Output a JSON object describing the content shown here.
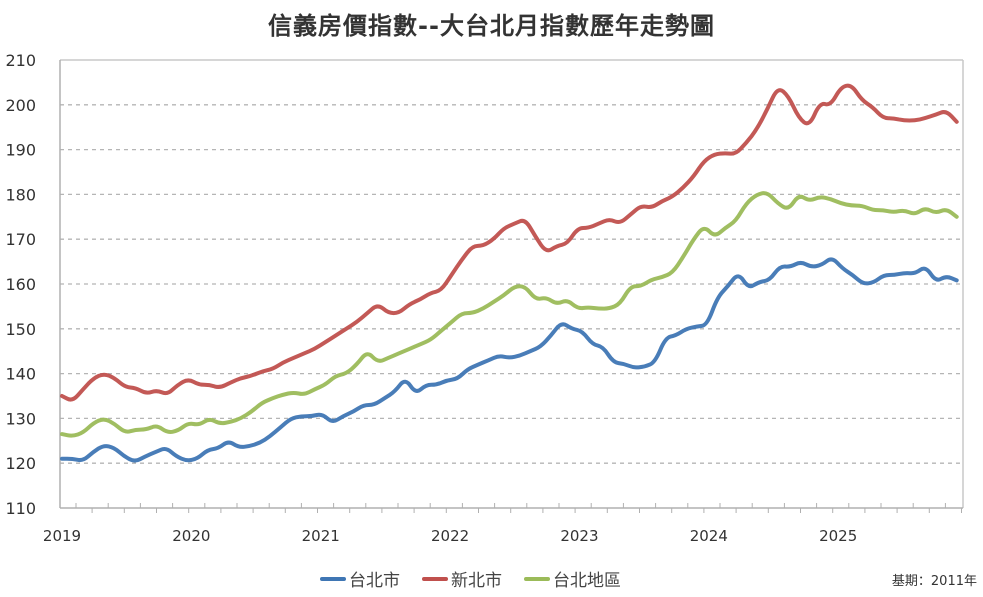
{
  "chart_data": {
    "type": "line",
    "title": "信義房價指數--大台北月指數歷年走勢圖",
    "xlabel": "",
    "ylabel": "",
    "ylim": [
      110,
      210
    ],
    "yticks": [
      110,
      120,
      130,
      140,
      150,
      160,
      170,
      180,
      190,
      200,
      210
    ],
    "xtick_labels": [
      "2019",
      "2020",
      "2021",
      "2022",
      "2023",
      "2024",
      "2025"
    ],
    "x_start": "2019-01",
    "x_end": "2025-12",
    "grid": "horizontal-dashed",
    "legend_position": "bottom",
    "note": "基期：2011年",
    "series": [
      {
        "name": "台北市",
        "color": "#3f76b4",
        "values": [
          121,
          121,
          120.5,
          122.5,
          124,
          123.5,
          121.5,
          120.3,
          121.5,
          122.5,
          123.5,
          121.5,
          120.5,
          121,
          123,
          123.3,
          125,
          123.5,
          123.8,
          124.5,
          126,
          128,
          130,
          130.5,
          130.5,
          131,
          129,
          130.5,
          131.5,
          133,
          133,
          134.5,
          136,
          139,
          135.5,
          137.5,
          137.5,
          138.5,
          138.8,
          141,
          142,
          143,
          144,
          143.5,
          144,
          145,
          146,
          148.5,
          151.5,
          150,
          149.5,
          146.5,
          146,
          142.5,
          142.2,
          141.3,
          141.5,
          142.5,
          148,
          148.5,
          150,
          150.5,
          150.8,
          157,
          159.5,
          162.5,
          159,
          160.5,
          160.8,
          164,
          163.8,
          165,
          163.8,
          164.2,
          166,
          163.5,
          162,
          160,
          160.3,
          162,
          162,
          162.5,
          162.3,
          164,
          160.5,
          161.8,
          160.8
        ]
      },
      {
        "name": "新北市",
        "color": "#c0504d",
        "values": [
          135,
          133.8,
          136.5,
          139,
          140,
          139,
          137,
          136.8,
          135.5,
          136.3,
          135.3,
          137.5,
          138.8,
          137.5,
          137.5,
          136.8,
          138,
          139,
          139.5,
          140.5,
          141,
          142.5,
          143.5,
          144.5,
          145.5,
          147,
          148.5,
          150,
          151.5,
          153.5,
          155.5,
          153.5,
          153.5,
          155.5,
          156.5,
          158,
          158.5,
          162,
          165.5,
          168.5,
          168.5,
          170,
          172.5,
          173.5,
          174.5,
          170.5,
          167,
          168.5,
          169,
          172.5,
          172.5,
          173.5,
          174.5,
          173.5,
          175.5,
          177.5,
          177,
          178.5,
          179.5,
          181.5,
          184,
          187.5,
          189,
          189.2,
          189,
          191.5,
          194.5,
          199,
          204,
          202,
          197,
          195.2,
          200.5,
          199.8,
          204,
          204.5,
          201,
          199.5,
          197,
          197,
          196.5,
          196.5,
          197,
          197.8,
          198.7,
          196.2
        ]
      },
      {
        "name": "台北地區",
        "color": "#9bbb59",
        "values": [
          126.5,
          126,
          126.8,
          129,
          130,
          128.8,
          126.8,
          127.5,
          127.5,
          128.5,
          126.8,
          127.2,
          129,
          128.5,
          130,
          128.8,
          129.2,
          130,
          131.5,
          133.5,
          134.5,
          135.3,
          135.8,
          135.3,
          136.5,
          137.5,
          139.5,
          140,
          142,
          145,
          142.5,
          143.5,
          144.5,
          145.5,
          146.5,
          147.5,
          149.5,
          151.5,
          153.5,
          153.5,
          154.5,
          156,
          157.5,
          159.5,
          159.5,
          156.5,
          157,
          155.5,
          156.5,
          154.5,
          154.8,
          154.5,
          154.5,
          155.5,
          159.5,
          159.5,
          161,
          161.5,
          162.5,
          166,
          170,
          173,
          170.5,
          172.5,
          174,
          178,
          180,
          180.5,
          178,
          176.5,
          180,
          178.5,
          179.5,
          179,
          178,
          177.5,
          177.5,
          176.5,
          176.5,
          176,
          176.5,
          175.5,
          177,
          175.8,
          176.8,
          175
        ]
      }
    ]
  }
}
